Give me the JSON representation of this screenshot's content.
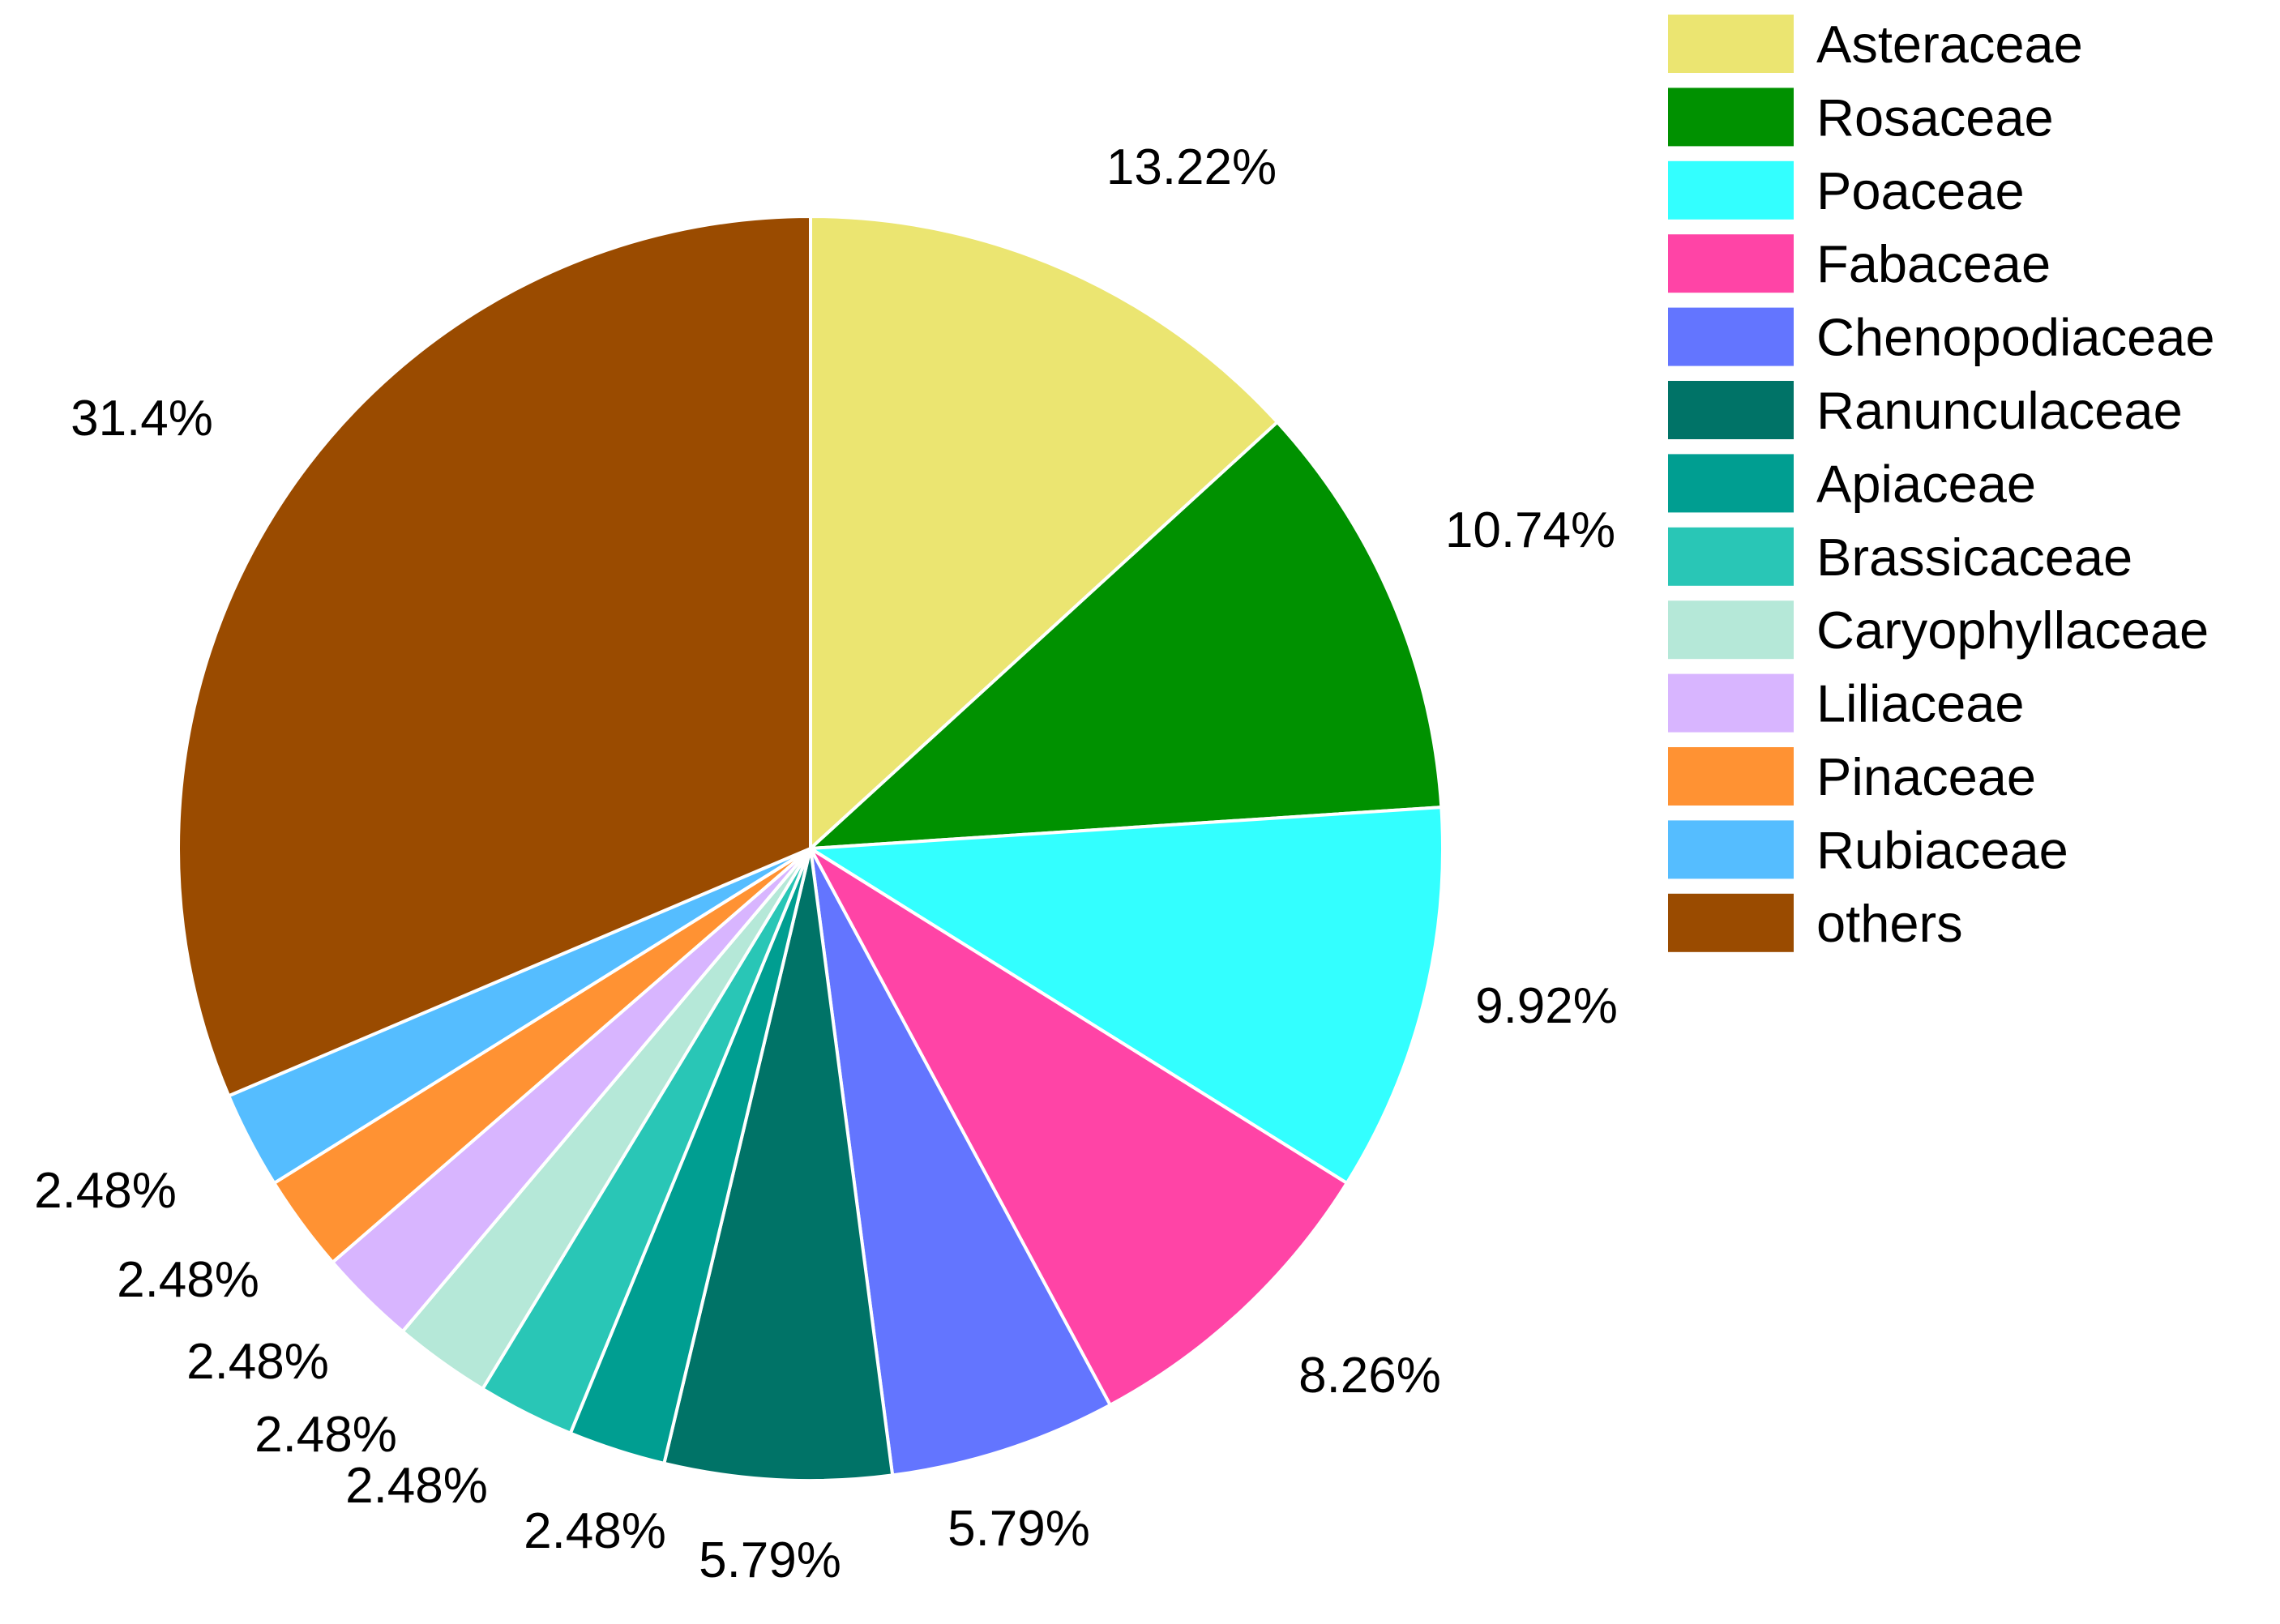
{
  "chart_data": {
    "type": "pie",
    "start": "12 o'clock",
    "direction": "clockwise",
    "legend_position": "right",
    "slices": [
      {
        "category": "Asteraceae",
        "value": 13.22,
        "label": "13.22%",
        "color": "#EBE571"
      },
      {
        "category": "Rosaceae",
        "value": 10.74,
        "label": "10.74%",
        "color": "#009100"
      },
      {
        "category": "Poaceae",
        "value": 9.92,
        "label": "9.92%",
        "color": "#33FFFF"
      },
      {
        "category": "Fabaceae",
        "value": 8.26,
        "label": "8.26%",
        "color": "#FF44A6"
      },
      {
        "category": "Chenopodiaceae",
        "value": 5.79,
        "label": "5.79%",
        "color": "#6375FF"
      },
      {
        "category": "Ranunculaceae",
        "value": 5.79,
        "label": "5.79%",
        "color": "#007367"
      },
      {
        "category": "Apiaceae",
        "value": 2.48,
        "label": "2.48%",
        "color": "#009E91"
      },
      {
        "category": "Brassicaceae",
        "value": 2.48,
        "label": "2.48%",
        "color": "#29C6B6"
      },
      {
        "category": "Caryophyllaceae",
        "value": 2.48,
        "label": "2.48%",
        "color": "#B5E8D8"
      },
      {
        "category": "Liliaceae",
        "value": 2.48,
        "label": "2.48%",
        "color": "#D8B5FF"
      },
      {
        "category": "Pinaceae",
        "value": 2.48,
        "label": "2.48%",
        "color": "#FF9233"
      },
      {
        "category": "Rubiaceae",
        "value": 2.48,
        "label": "2.48%",
        "color": "#55BDFF"
      },
      {
        "category": "others",
        "value": 31.4,
        "label": "31.4%",
        "color": "#9A4B00"
      }
    ]
  }
}
